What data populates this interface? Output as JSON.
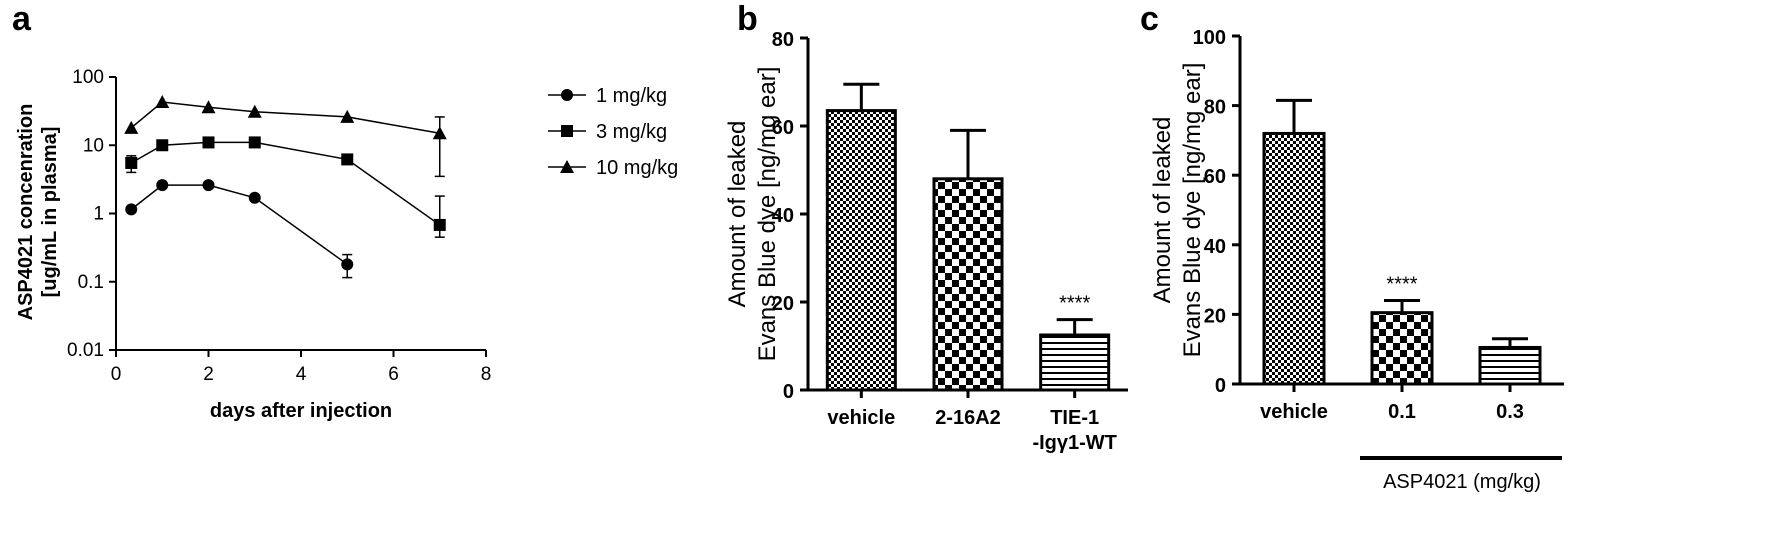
{
  "panels": {
    "a": {
      "letter": "a"
    },
    "b": {
      "letter": "b"
    },
    "c": {
      "letter": "c"
    }
  },
  "chart_data": [
    {
      "id": "a",
      "type": "line",
      "xlabel": "days after injection",
      "ylabel_lines": [
        "ASP4021 concenration",
        "[ug/mL in plasma]"
      ],
      "xlim": [
        0,
        8
      ],
      "xticks": [
        0,
        2,
        4,
        6,
        8
      ],
      "ylim": [
        0.01,
        100
      ],
      "yscale": "log",
      "yticks": [
        0.01,
        0.1,
        1,
        10,
        100
      ],
      "ytick_labels": [
        "0.01",
        "0.1",
        "1",
        "10",
        "100"
      ],
      "legend_position": "right",
      "series": [
        {
          "name": "1 mg/kg",
          "marker": "circle",
          "x": [
            0.33,
            1,
            2,
            3,
            5
          ],
          "y": [
            1.15,
            2.6,
            2.6,
            1.7,
            0.18
          ],
          "err_low": [
            null,
            null,
            null,
            null,
            0.115
          ],
          "err_high": [
            null,
            null,
            null,
            null,
            0.25
          ]
        },
        {
          "name": "3 mg/kg",
          "marker": "square",
          "x": [
            0.33,
            1,
            2,
            3,
            5,
            7
          ],
          "y": [
            5.5,
            10,
            11,
            11,
            6.2,
            0.68
          ],
          "err_low": [
            4.0,
            null,
            null,
            null,
            null,
            0.45
          ],
          "err_high": [
            7.0,
            null,
            null,
            null,
            null,
            1.8
          ]
        },
        {
          "name": "10 mg/kg",
          "marker": "triangle",
          "x": [
            0.33,
            1,
            2,
            3,
            5,
            7
          ],
          "y": [
            18,
            43,
            36,
            31,
            26,
            15
          ],
          "err_low": [
            null,
            null,
            null,
            null,
            null,
            3.5
          ],
          "err_high": [
            null,
            null,
            null,
            null,
            null,
            26
          ]
        }
      ]
    },
    {
      "id": "b",
      "type": "bar",
      "ylabel_lines": [
        "Amount of leaked",
        "Evans Blue dye [ng/mg ear]"
      ],
      "ylim": [
        0,
        80
      ],
      "yticks": [
        0,
        20,
        40,
        60,
        80
      ],
      "categories": [
        "vehicle",
        "2-16A2",
        "TIE-1\n-Igγ1-WT"
      ],
      "values": [
        63.5,
        48,
        12.5
      ],
      "errors": [
        6,
        11,
        3.5
      ],
      "patterns": [
        "fine-check",
        "checker",
        "hlines"
      ],
      "annotations": [
        null,
        null,
        "****"
      ]
    },
    {
      "id": "c",
      "type": "bar",
      "ylabel_lines": [
        "Amount of leaked",
        "Evans Blue dye [ng/mg ear]"
      ],
      "ylim": [
        0,
        100
      ],
      "yticks": [
        0,
        20,
        40,
        60,
        80,
        100
      ],
      "categories": [
        "vehicle",
        "0.1",
        "0.3"
      ],
      "values": [
        72,
        20.5,
        10.5
      ],
      "errors": [
        9.5,
        3.5,
        2.5
      ],
      "patterns": [
        "fine-check",
        "checker",
        "hlines"
      ],
      "annotations": [
        null,
        "****",
        null
      ],
      "group_label": "ASP4021 (mg/kg)"
    }
  ]
}
